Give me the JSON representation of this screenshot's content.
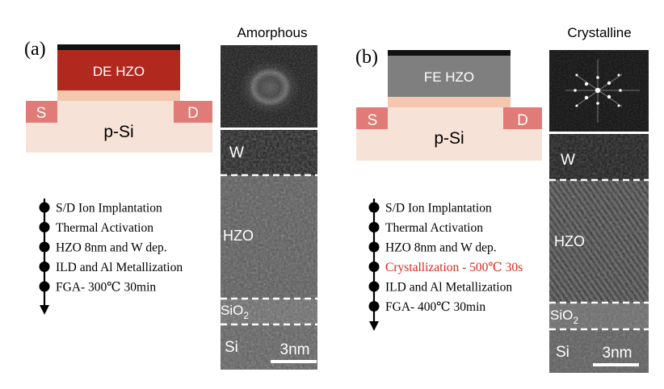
{
  "panels": [
    {
      "label": "(a)",
      "phase_title": "Amorphous",
      "oxide_label": "DE HZO",
      "source_label": "S",
      "drain_label": "D",
      "substrate_label": "p-Si",
      "steps": [
        {
          "text": "S/D Ion Implantation",
          "highlight": false
        },
        {
          "text": "Thermal Activation",
          "highlight": false
        },
        {
          "text": "HZO 8nm and W dep.",
          "highlight": false
        },
        {
          "text": "ILD and Al Metallization",
          "highlight": false
        },
        {
          "text": "FGA- 300℃ 30min",
          "highlight": false
        }
      ],
      "tem_layers": {
        "w": "W",
        "hzo": "HZO",
        "sio2_base": "SiO",
        "sio2_sub": "2",
        "si": "Si"
      },
      "scale_bar": "3nm"
    },
    {
      "label": "(b)",
      "phase_title": "Crystalline",
      "oxide_label": "FE HZO",
      "source_label": "S",
      "drain_label": "D",
      "substrate_label": "p-Si",
      "steps": [
        {
          "text": "S/D Ion Implantation",
          "highlight": false
        },
        {
          "text": "Thermal Activation",
          "highlight": false
        },
        {
          "text": "HZO 8nm and W dep.",
          "highlight": false
        },
        {
          "text": "Crystallization - 500℃ 30s",
          "highlight": true
        },
        {
          "text": "ILD and Al Metallization",
          "highlight": false
        },
        {
          "text": "FGA- 400℃ 30min",
          "highlight": false
        }
      ],
      "tem_layers": {
        "w": "W",
        "hzo": "HZO",
        "sio2_base": "SiO",
        "sio2_sub": "2",
        "si": "Si"
      },
      "scale_bar": "3nm"
    }
  ],
  "colors": {
    "de_hzo": "#b0281e",
    "fe_hzo": "#7f7f7f",
    "interlayer": "#f4c7ae",
    "substrate": "#f7e2d7",
    "source_drain": "#e07b77",
    "gate_metal": "#111111",
    "highlight_text": "#e0281c",
    "step_text": "#000000",
    "tem_label": "#ffffff"
  }
}
